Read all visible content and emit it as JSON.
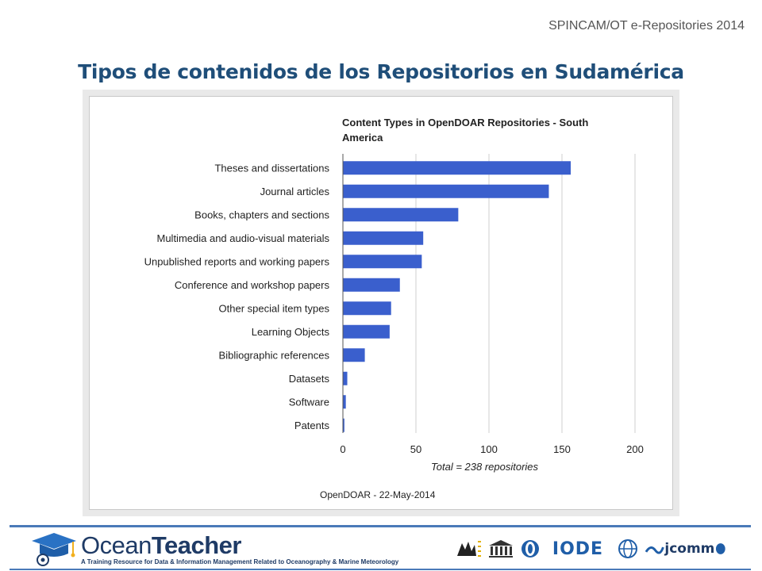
{
  "slide": {
    "header_tag": "SPINCAM/OT e-Repositories 2014",
    "title": "Tipos de contenidos de los Repositorios en Sudamérica"
  },
  "chart_data": {
    "type": "bar",
    "orientation": "horizontal",
    "title_line1": "Content Types in OpenDOAR Repositories - South",
    "title_line2": "America",
    "categories": [
      "Theses and dissertations",
      "Journal articles",
      "Books, chapters and sections",
      "Multimedia and audio-visual materials",
      "Unpublished reports and working papers",
      "Conference and workshop papers",
      "Other special item types",
      "Learning Objects",
      "Bibliographic references",
      "Datasets",
      "Software",
      "Patents"
    ],
    "values": [
      156,
      141,
      79,
      55,
      54,
      39,
      33,
      32,
      15,
      3,
      2,
      1
    ],
    "xlim": [
      0,
      200
    ],
    "xticks": [
      0,
      50,
      100,
      150,
      200
    ],
    "grid": true,
    "note": "Total = 238 repositories",
    "source": "OpenDOAR - 22-May-2014",
    "bar_color": "#3a5fcd"
  },
  "footer": {
    "logo_word_regular": "Ocean",
    "logo_word_bold": "Teacher",
    "tagline": "A Training Resource for Data & Information Management Related to Oceanography & Marine Meteorology",
    "partners": [
      "flanders-logo",
      "unesco-logo",
      "ioc-logo",
      "iode-logo",
      "wmo-logo",
      "jcomm-logo"
    ],
    "iode_text": "IODE",
    "jcomm_text": "jcomm"
  }
}
